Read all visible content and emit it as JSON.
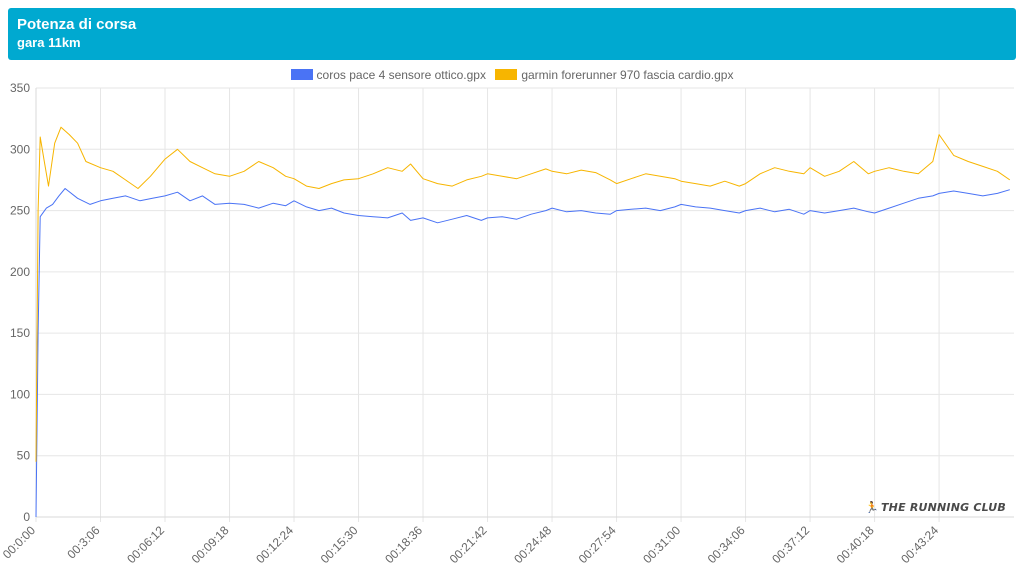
{
  "header": {
    "title": "Potenza di corsa",
    "subtitle": "gara 11km"
  },
  "watermark": {
    "icon": "runner-icon",
    "text": "THE RUNNING CLUB"
  },
  "colors": {
    "header_bg": "#00a9d0",
    "series_1": "#4a73f5",
    "series_2": "#f7b500",
    "grid": "#e6e6e6",
    "tick_text": "#666666"
  },
  "chart_data": {
    "type": "line",
    "ylim": [
      0,
      350
    ],
    "yticks": [
      0,
      50,
      100,
      150,
      200,
      250,
      300,
      350
    ],
    "xlim": [
      "00:0:00",
      "00:47:00"
    ],
    "xticks": [
      "00:0:00",
      "00:3:06",
      "00:06:12",
      "00:09:18",
      "00:12:24",
      "00:15:30",
      "00:18:36",
      "00:21:42",
      "00:24:48",
      "00:27:54",
      "00:31:00",
      "00:34:06",
      "00:37:12",
      "00:40:18",
      "00:43:24"
    ],
    "grid": true,
    "legend_position": "top-center",
    "series": [
      {
        "name": "coros pace 4 sensore ottico.gpx",
        "color": "#4a73f5",
        "points": [
          [
            "00:00:00",
            0
          ],
          [
            "00:00:06",
            150
          ],
          [
            "00:00:12",
            245
          ],
          [
            "00:00:30",
            252
          ],
          [
            "00:00:48",
            255
          ],
          [
            "00:01:06",
            262
          ],
          [
            "00:01:24",
            268
          ],
          [
            "00:02:00",
            260
          ],
          [
            "00:02:36",
            255
          ],
          [
            "00:03:06",
            258
          ],
          [
            "00:03:42",
            260
          ],
          [
            "00:04:18",
            262
          ],
          [
            "00:05:00",
            258
          ],
          [
            "00:05:36",
            260
          ],
          [
            "00:06:12",
            262
          ],
          [
            "00:06:48",
            265
          ],
          [
            "00:07:24",
            258
          ],
          [
            "00:08:00",
            262
          ],
          [
            "00:08:36",
            255
          ],
          [
            "00:09:18",
            256
          ],
          [
            "00:10:00",
            255
          ],
          [
            "00:10:42",
            252
          ],
          [
            "00:11:24",
            256
          ],
          [
            "00:12:00",
            254
          ],
          [
            "00:12:24",
            258
          ],
          [
            "00:13:00",
            253
          ],
          [
            "00:13:36",
            250
          ],
          [
            "00:14:12",
            252
          ],
          [
            "00:14:48",
            248
          ],
          [
            "00:15:30",
            246
          ],
          [
            "00:16:12",
            245
          ],
          [
            "00:16:54",
            244
          ],
          [
            "00:17:36",
            248
          ],
          [
            "00:18:00",
            242
          ],
          [
            "00:18:36",
            244
          ],
          [
            "00:19:18",
            240
          ],
          [
            "00:20:00",
            243
          ],
          [
            "00:20:42",
            246
          ],
          [
            "00:21:24",
            242
          ],
          [
            "00:21:42",
            244
          ],
          [
            "00:22:24",
            245
          ],
          [
            "00:23:06",
            243
          ],
          [
            "00:23:48",
            247
          ],
          [
            "00:24:30",
            250
          ],
          [
            "00:24:48",
            252
          ],
          [
            "00:25:30",
            249
          ],
          [
            "00:26:12",
            250
          ],
          [
            "00:26:54",
            248
          ],
          [
            "00:27:36",
            247
          ],
          [
            "00:27:54",
            250
          ],
          [
            "00:28:36",
            251
          ],
          [
            "00:29:18",
            252
          ],
          [
            "00:30:00",
            250
          ],
          [
            "00:30:42",
            253
          ],
          [
            "00:31:00",
            255
          ],
          [
            "00:31:42",
            253
          ],
          [
            "00:32:24",
            252
          ],
          [
            "00:33:06",
            250
          ],
          [
            "00:33:48",
            248
          ],
          [
            "00:34:06",
            250
          ],
          [
            "00:34:48",
            252
          ],
          [
            "00:35:30",
            249
          ],
          [
            "00:36:12",
            251
          ],
          [
            "00:36:54",
            247
          ],
          [
            "00:37:12",
            250
          ],
          [
            "00:37:54",
            248
          ],
          [
            "00:38:36",
            250
          ],
          [
            "00:39:18",
            252
          ],
          [
            "00:40:00",
            249
          ],
          [
            "00:40:18",
            248
          ],
          [
            "00:41:00",
            252
          ],
          [
            "00:41:42",
            256
          ],
          [
            "00:42:24",
            260
          ],
          [
            "00:43:06",
            262
          ],
          [
            "00:43:24",
            264
          ],
          [
            "00:44:06",
            266
          ],
          [
            "00:44:48",
            264
          ],
          [
            "00:45:30",
            262
          ],
          [
            "00:46:12",
            264
          ],
          [
            "00:46:48",
            267
          ]
        ]
      },
      {
        "name": "garmin forerunner 970 fascia cardio.gpx",
        "color": "#f7b500",
        "points": [
          [
            "00:00:00",
            45
          ],
          [
            "00:00:06",
            250
          ],
          [
            "00:00:12",
            310
          ],
          [
            "00:00:24",
            290
          ],
          [
            "00:00:36",
            270
          ],
          [
            "00:00:54",
            305
          ],
          [
            "00:01:12",
            318
          ],
          [
            "00:01:36",
            312
          ],
          [
            "00:02:00",
            305
          ],
          [
            "00:02:24",
            290
          ],
          [
            "00:03:06",
            285
          ],
          [
            "00:03:42",
            282
          ],
          [
            "00:04:18",
            275
          ],
          [
            "00:04:54",
            268
          ],
          [
            "00:05:30",
            278
          ],
          [
            "00:06:12",
            292
          ],
          [
            "00:06:48",
            300
          ],
          [
            "00:07:24",
            290
          ],
          [
            "00:08:00",
            285
          ],
          [
            "00:08:36",
            280
          ],
          [
            "00:09:18",
            278
          ],
          [
            "00:10:00",
            282
          ],
          [
            "00:10:42",
            290
          ],
          [
            "00:11:24",
            285
          ],
          [
            "00:12:00",
            278
          ],
          [
            "00:12:24",
            276
          ],
          [
            "00:13:00",
            270
          ],
          [
            "00:13:36",
            268
          ],
          [
            "00:14:12",
            272
          ],
          [
            "00:14:48",
            275
          ],
          [
            "00:15:30",
            276
          ],
          [
            "00:16:12",
            280
          ],
          [
            "00:16:54",
            285
          ],
          [
            "00:17:36",
            282
          ],
          [
            "00:18:00",
            288
          ],
          [
            "00:18:36",
            276
          ],
          [
            "00:19:18",
            272
          ],
          [
            "00:20:00",
            270
          ],
          [
            "00:20:42",
            275
          ],
          [
            "00:21:24",
            278
          ],
          [
            "00:21:42",
            280
          ],
          [
            "00:22:24",
            278
          ],
          [
            "00:23:06",
            276
          ],
          [
            "00:23:48",
            280
          ],
          [
            "00:24:30",
            284
          ],
          [
            "00:24:48",
            282
          ],
          [
            "00:25:30",
            280
          ],
          [
            "00:26:12",
            283
          ],
          [
            "00:26:54",
            281
          ],
          [
            "00:27:36",
            275
          ],
          [
            "00:27:54",
            272
          ],
          [
            "00:28:36",
            276
          ],
          [
            "00:29:18",
            280
          ],
          [
            "00:30:00",
            278
          ],
          [
            "00:30:42",
            276
          ],
          [
            "00:31:00",
            274
          ],
          [
            "00:31:42",
            272
          ],
          [
            "00:32:24",
            270
          ],
          [
            "00:33:06",
            274
          ],
          [
            "00:33:48",
            270
          ],
          [
            "00:34:06",
            272
          ],
          [
            "00:34:48",
            280
          ],
          [
            "00:35:30",
            285
          ],
          [
            "00:36:12",
            282
          ],
          [
            "00:36:54",
            280
          ],
          [
            "00:37:12",
            285
          ],
          [
            "00:37:54",
            278
          ],
          [
            "00:38:36",
            282
          ],
          [
            "00:39:18",
            290
          ],
          [
            "00:40:00",
            280
          ],
          [
            "00:40:18",
            282
          ],
          [
            "00:41:00",
            285
          ],
          [
            "00:41:42",
            282
          ],
          [
            "00:42:24",
            280
          ],
          [
            "00:43:06",
            290
          ],
          [
            "00:43:24",
            312
          ],
          [
            "00:44:06",
            295
          ],
          [
            "00:44:48",
            290
          ],
          [
            "00:45:30",
            286
          ],
          [
            "00:46:12",
            282
          ],
          [
            "00:46:48",
            275
          ]
        ]
      }
    ]
  }
}
